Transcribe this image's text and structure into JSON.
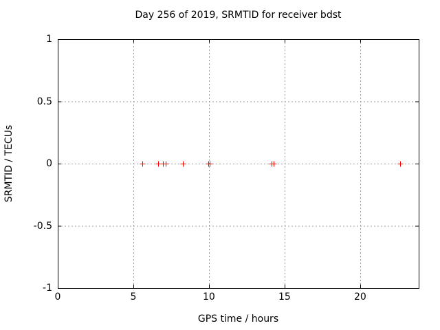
{
  "chart_data": {
    "type": "scatter",
    "title": "Day 256 of 2019, SRMTID for receiver bdst",
    "xlabel": "GPS time / hours",
    "ylabel": "SRMTID / TECUs",
    "xlim": [
      0,
      23.87
    ],
    "ylim": [
      -1,
      1
    ],
    "x_ticks": [
      0,
      5,
      10,
      15,
      20
    ],
    "x_tick_labels": [
      "0",
      "5",
      "10",
      "15",
      "20"
    ],
    "y_ticks": [
      -1,
      -0.5,
      0,
      0.5,
      1
    ],
    "y_tick_labels": [
      "-1",
      "-0.5",
      "0",
      "0.5",
      "1"
    ],
    "grid": true,
    "legend": "none",
    "marker": "plus",
    "marker_color": "#ff0000",
    "grid_color": "#9a9a9a",
    "axis_color": "#000000",
    "background_color": "#ffffff",
    "series": [
      {
        "name": "SRMTID",
        "points": [
          {
            "x": 5.58,
            "y": 0
          },
          {
            "x": 6.62,
            "y": 0
          },
          {
            "x": 6.97,
            "y": 0
          },
          {
            "x": 7.12,
            "y": 0
          },
          {
            "x": 8.26,
            "y": 0
          },
          {
            "x": 9.95,
            "y": 0
          },
          {
            "x": 10.07,
            "y": 0
          },
          {
            "x": 14.13,
            "y": 0
          },
          {
            "x": 14.26,
            "y": 0
          },
          {
            "x": 22.64,
            "y": 0
          }
        ]
      }
    ]
  }
}
